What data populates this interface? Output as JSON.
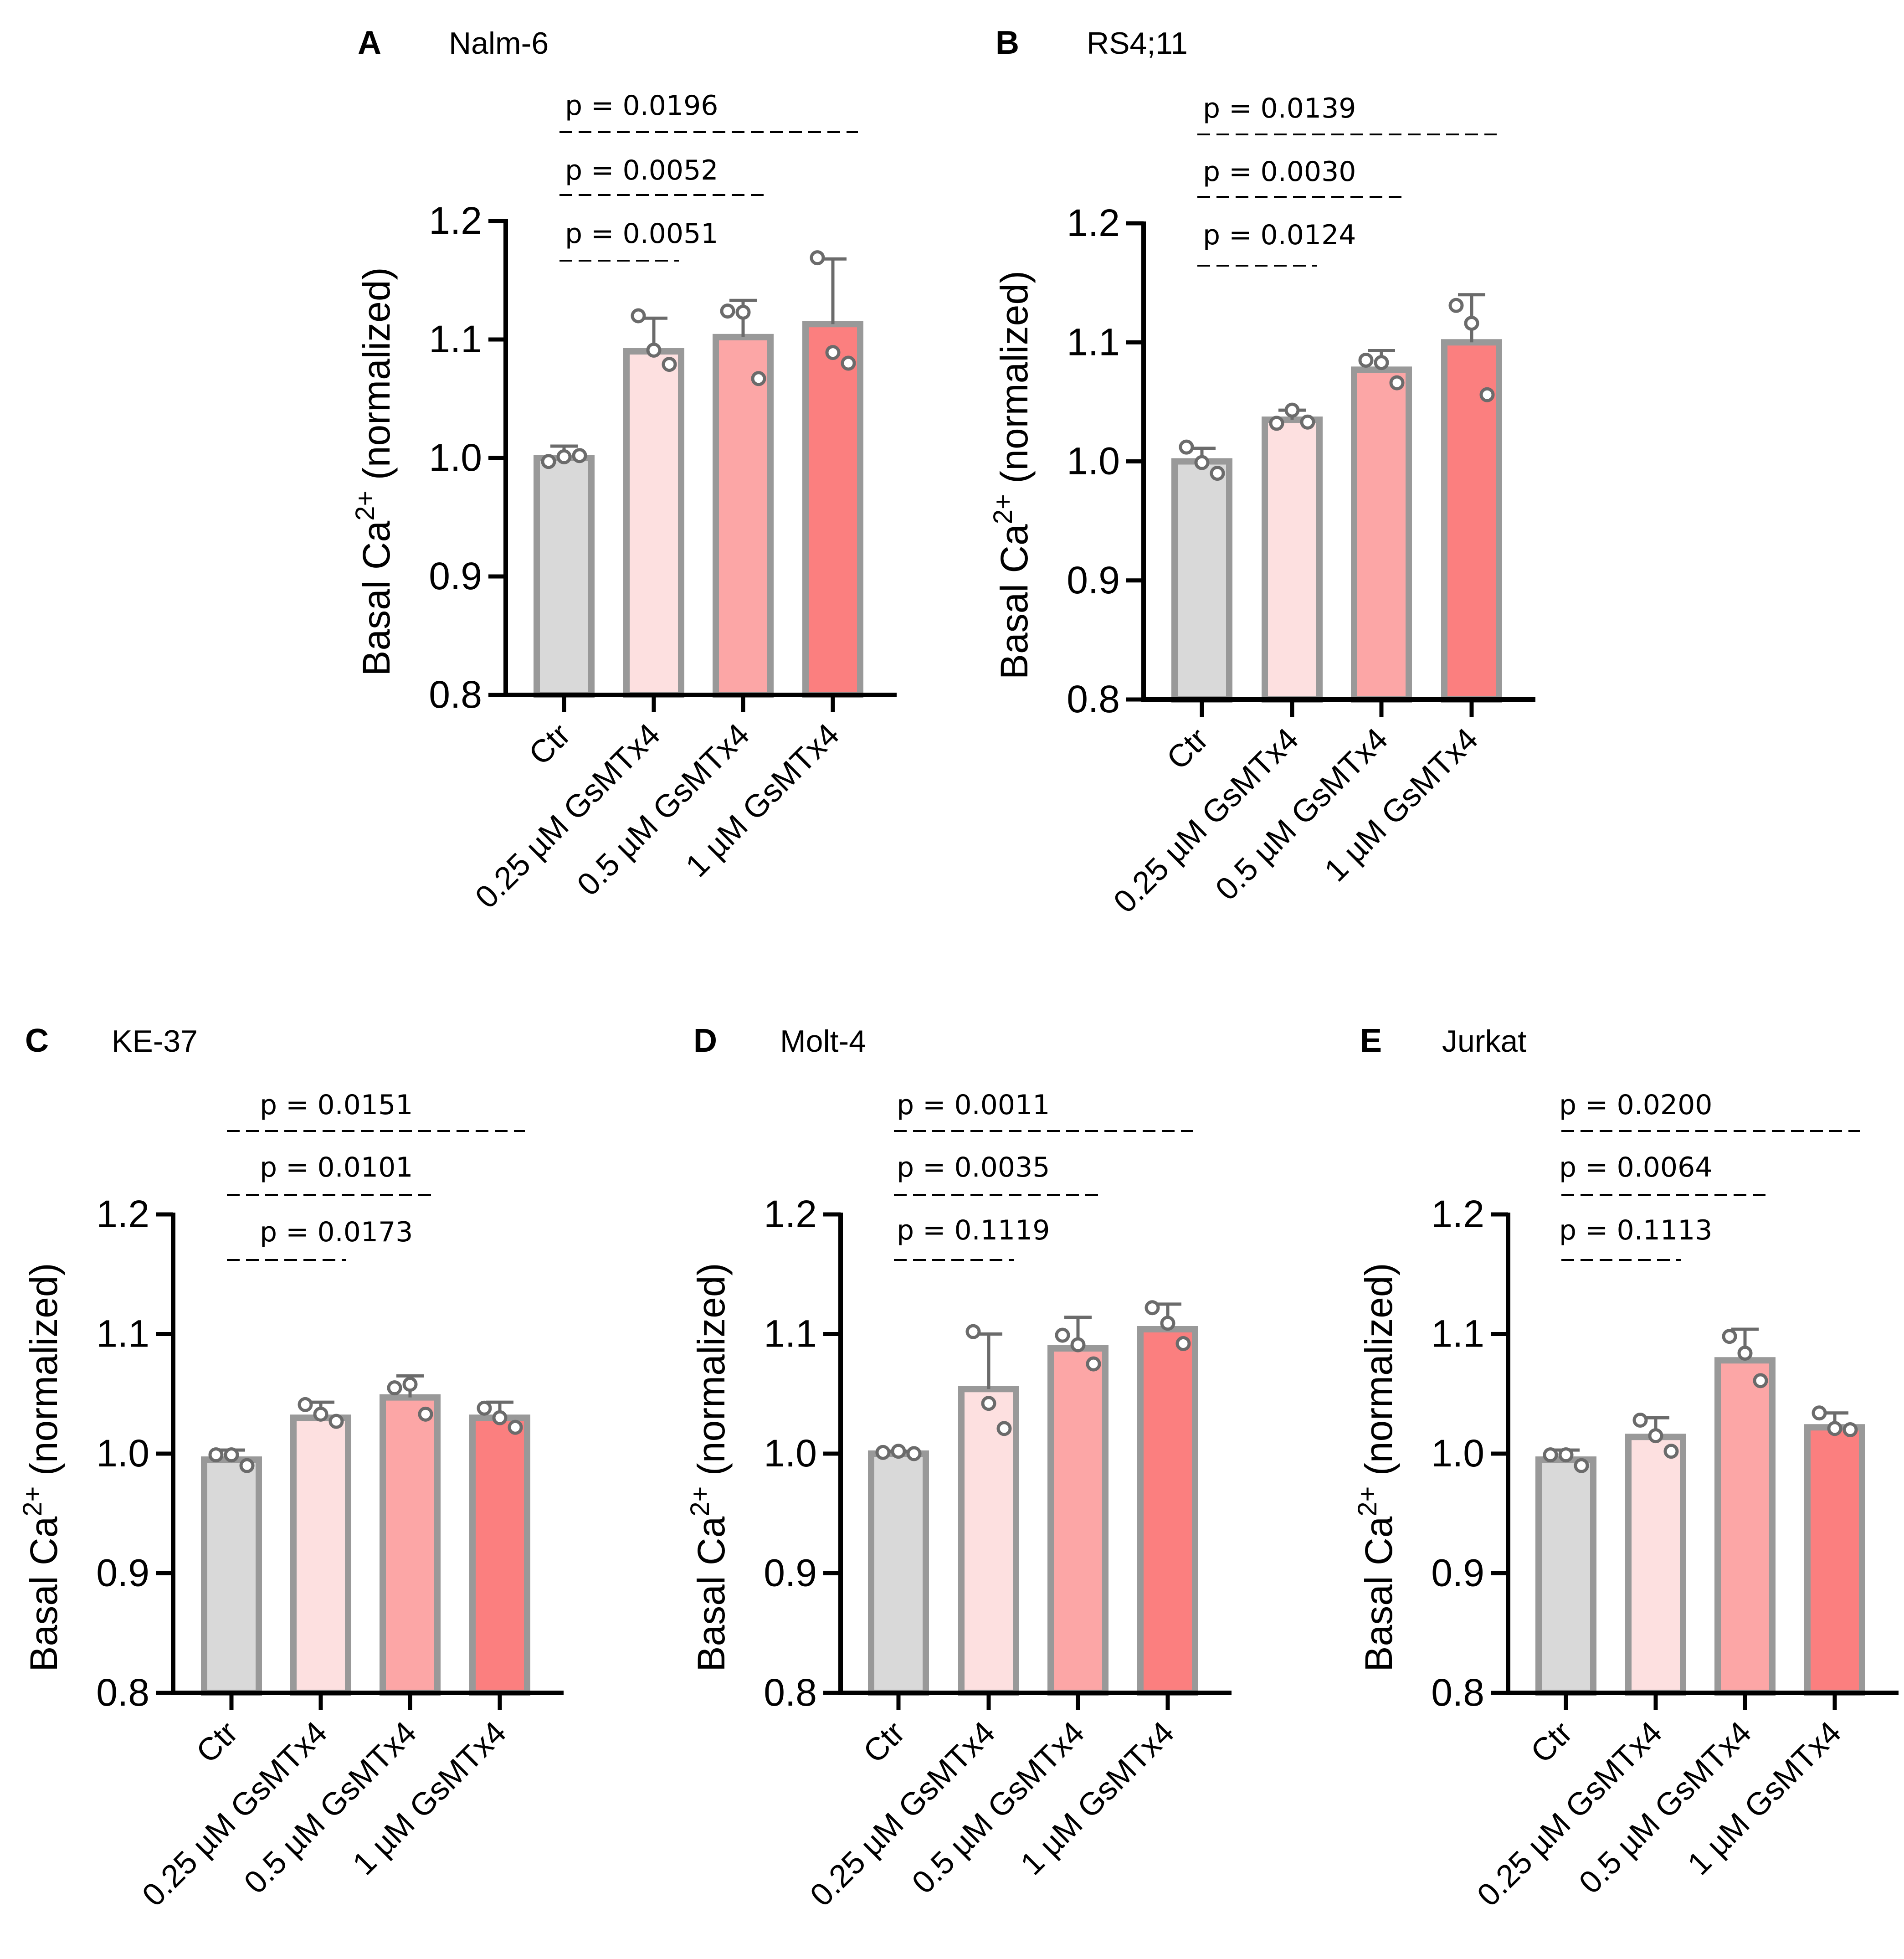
{
  "colors": {
    "bar_stroke": "#999999",
    "point_stroke": "#6b6b6b",
    "axis": "#000000",
    "bar_fills": [
      "#d9d9d9",
      "#fde0e0",
      "#fca6a6",
      "#fb7f7f"
    ]
  },
  "chart_data": [
    {
      "panel": "A",
      "title": "Nalm-6",
      "type": "bar",
      "ylabel": "Basal Ca",
      "ylabel_sup": "2+",
      "ylabel_suffix": " (normalized)",
      "ylim": [
        0.8,
        1.2
      ],
      "yticks": [
        "0.8",
        "0.9",
        "1.0",
        "1.1",
        "1.2"
      ],
      "categories": [
        "Ctr",
        "0.25 µM GsMTx4",
        "0.5 µM GsMTx4",
        "1 µM GsMTx4"
      ],
      "values": [
        1.0,
        1.09,
        1.102,
        1.113
      ],
      "error": [
        0.01,
        0.028,
        0.031,
        0.055
      ],
      "points": [
        [
          0.997,
          1.001,
          1.002
        ],
        [
          1.12,
          1.091,
          1.079
        ],
        [
          1.124,
          1.123,
          1.067
        ],
        [
          1.169,
          1.089,
          1.08
        ]
      ],
      "pvalues": [
        {
          "label": "p = 0.0196",
          "to": 3
        },
        {
          "label": "p = 0.0052",
          "to": 2
        },
        {
          "label": "p = 0.0051",
          "to": 1
        }
      ]
    },
    {
      "panel": "B",
      "title": "RS4;11",
      "type": "bar",
      "ylabel": "Basal Ca",
      "ylabel_sup": "2+",
      "ylabel_suffix": " (normalized)",
      "ylim": [
        0.8,
        1.2
      ],
      "yticks": [
        "0.8",
        "0.9",
        "1.0",
        "1.1",
        "1.2"
      ],
      "categories": [
        "Ctr",
        "0.25 µM GsMTx4",
        "0.5 µM GsMTx4",
        "1 µM GsMTx4"
      ],
      "values": [
        1.0,
        1.035,
        1.077,
        1.1
      ],
      "error": [
        0.011,
        0.008,
        0.016,
        0.04
      ],
      "points": [
        [
          1.012,
          0.999,
          0.99
        ],
        [
          1.032,
          1.043,
          1.033
        ],
        [
          1.085,
          1.083,
          1.066
        ],
        [
          1.131,
          1.116,
          1.056
        ]
      ],
      "pvalues": [
        {
          "label": "p = 0.0139",
          "to": 3
        },
        {
          "label": "p = 0.0030",
          "to": 2
        },
        {
          "label": "p = 0.0124",
          "to": 1
        }
      ]
    },
    {
      "panel": "C",
      "title": "KE-37",
      "type": "bar",
      "ylabel": "Basal Ca",
      "ylabel_sup": "2+",
      "ylabel_suffix": " (normalized)",
      "ylim": [
        0.8,
        1.2
      ],
      "yticks": [
        "0.8",
        "0.9",
        "1.0",
        "1.1",
        "1.2"
      ],
      "categories": [
        "Ctr",
        "0.25 µM GsMTx4",
        "0.5 µM GsMTx4",
        "1 µM GsMTx4"
      ],
      "values": [
        0.995,
        1.03,
        1.047,
        1.03
      ],
      "error": [
        0.008,
        0.013,
        0.018,
        0.013
      ],
      "points": [
        [
          0.999,
          0.999,
          0.99
        ],
        [
          1.041,
          1.033,
          1.027
        ],
        [
          1.055,
          1.058,
          1.033
        ],
        [
          1.038,
          1.03,
          1.022
        ]
      ],
      "pvalues": [
        {
          "label": "p = 0.0151",
          "to": 3
        },
        {
          "label": "p = 0.0101",
          "to": 2
        },
        {
          "label": "p = 0.0173",
          "to": 1
        }
      ]
    },
    {
      "panel": "D",
      "title": "Molt-4",
      "type": "bar",
      "ylabel": "Basal Ca",
      "ylabel_sup": "2+",
      "ylabel_suffix": " (normalized)",
      "ylim": [
        0.8,
        1.2
      ],
      "yticks": [
        "0.8",
        "0.9",
        "1.0",
        "1.1",
        "1.2"
      ],
      "categories": [
        "Ctr",
        "0.25 µM GsMTx4",
        "0.5 µM GsMTx4",
        "1 µM GsMTx4"
      ],
      "values": [
        1.0,
        1.054,
        1.088,
        1.104
      ],
      "error": [
        0.002,
        0.046,
        0.026,
        0.021
      ],
      "points": [
        [
          1.001,
          1.002,
          1.0
        ],
        [
          1.102,
          1.042,
          1.021
        ],
        [
          1.099,
          1.091,
          1.075
        ],
        [
          1.122,
          1.109,
          1.092
        ]
      ],
      "pvalues": [
        {
          "label": "p = 0.0011",
          "to": 3
        },
        {
          "label": "p = 0.0035",
          "to": 2
        },
        {
          "label": "p = 0.1119",
          "to": 1
        }
      ]
    },
    {
      "panel": "E",
      "title": "Jurkat",
      "type": "bar",
      "ylabel": "Basal Ca",
      "ylabel_sup": "2+",
      "ylabel_suffix": " (normalized)",
      "ylim": [
        0.8,
        1.2
      ],
      "yticks": [
        "0.8",
        "0.9",
        "1.0",
        "1.1",
        "1.2"
      ],
      "categories": [
        "Ctr",
        "0.25 µM GsMTx4",
        "0.5 µM GsMTx4",
        "1 µM GsMTx4"
      ],
      "values": [
        0.995,
        1.014,
        1.078,
        1.022
      ],
      "error": [
        0.008,
        0.016,
        0.026,
        0.012
      ],
      "points": [
        [
          0.999,
          0.999,
          0.99
        ],
        [
          1.028,
          1.015,
          1.002
        ],
        [
          1.098,
          1.084,
          1.061
        ],
        [
          1.034,
          1.021,
          1.02
        ]
      ],
      "pvalues": [
        {
          "label": "p = 0.0200",
          "to": 3
        },
        {
          "label": "p = 0.0064",
          "to": 2
        },
        {
          "label": "p = 0.1113",
          "to": 1
        }
      ]
    }
  ]
}
